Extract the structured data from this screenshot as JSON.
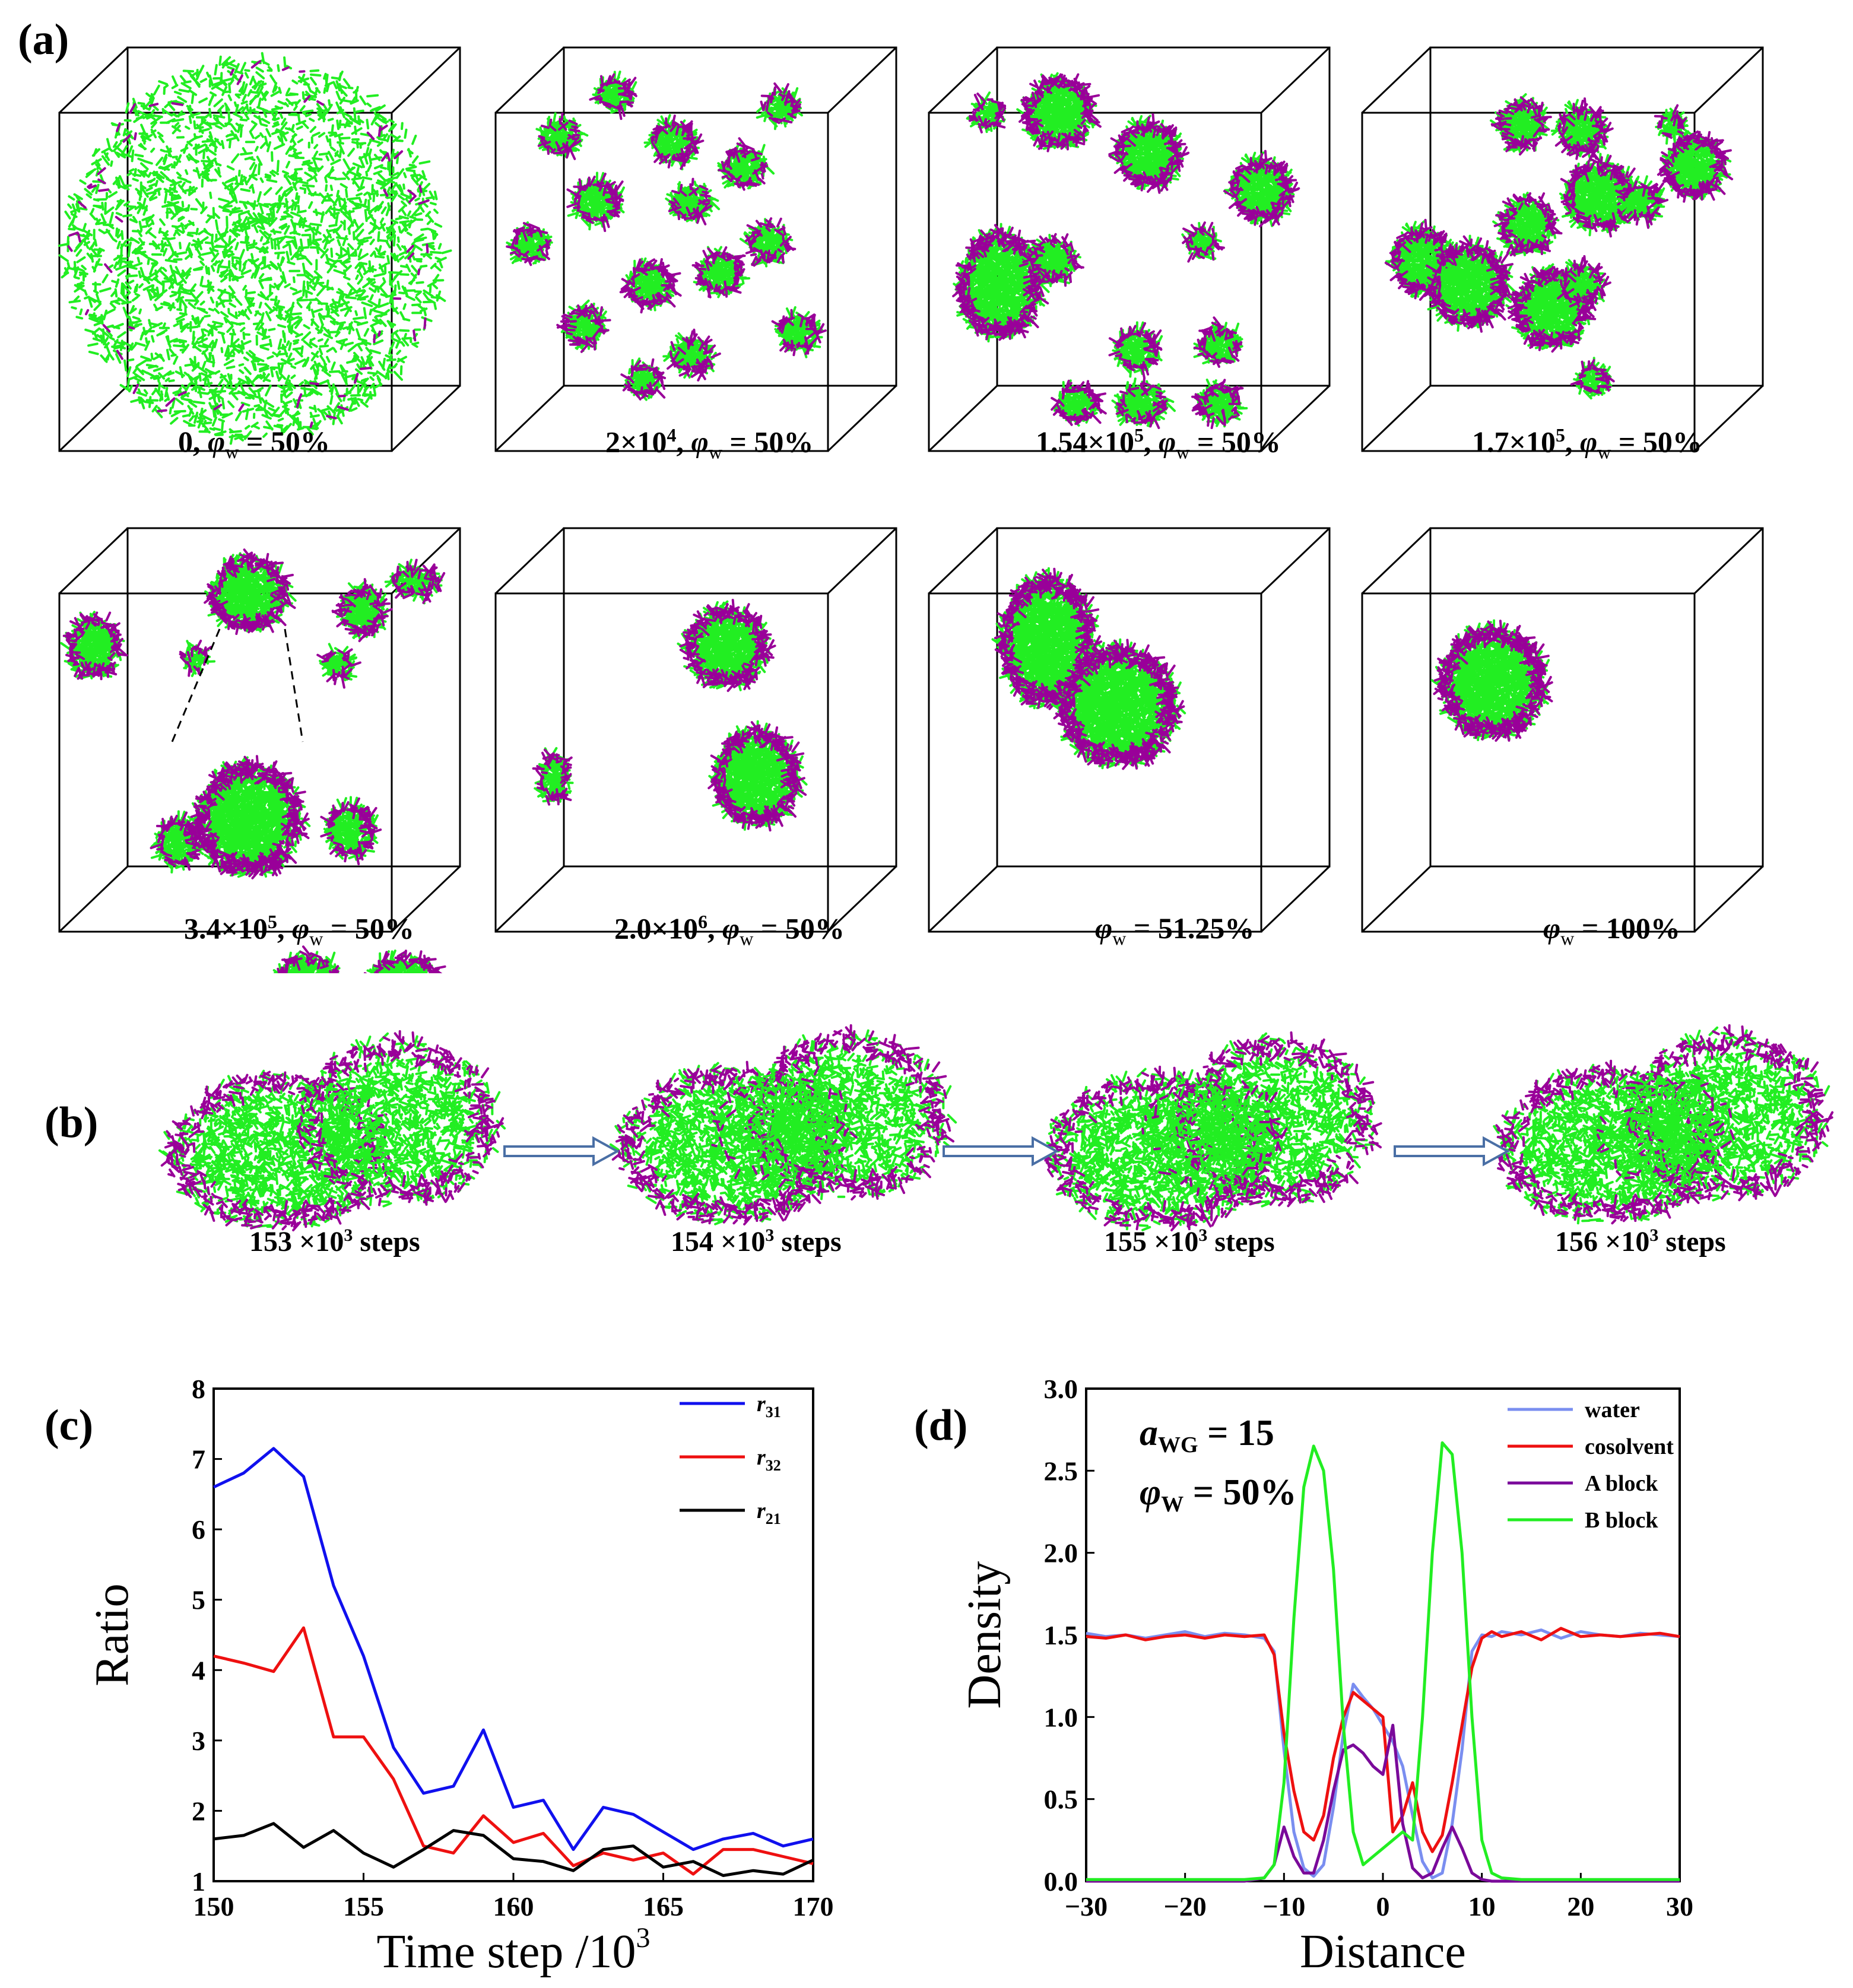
{
  "panel_a": {
    "tag": "(a)",
    "snapshots": [
      {
        "time": "0, ",
        "phi": "φ",
        "sub": "w",
        "value": " = 50%",
        "sup": ""
      },
      {
        "time": "2×10",
        "sup": "4",
        "tail": ", ",
        "phi": "φ",
        "sub": "w",
        "value": " = 50%"
      },
      {
        "time": "1.54×10",
        "sup": "5",
        "tail": ", ",
        "phi": "φ",
        "sub": "w",
        "value": " = 50%"
      },
      {
        "time": "1.7×10",
        "sup": "5",
        "tail": ", ",
        "phi": "φ",
        "sub": "w",
        "value": " = 50%"
      },
      {
        "time": "3.4×10",
        "sup": "5",
        "tail": ", ",
        "phi": "φ",
        "sub": "w",
        "value": " = 50%"
      },
      {
        "time": "2.0×10",
        "sup": "6",
        "tail": ", ",
        "phi": "φ",
        "sub": "w",
        "value": " = 50%"
      },
      {
        "time": "",
        "sup": "",
        "tail": "",
        "phi": "φ",
        "sub": "w",
        "value": " = 51.25%"
      },
      {
        "time": "",
        "sup": "",
        "tail": "",
        "phi": "φ",
        "sub": "w",
        "value": " = 100%"
      }
    ]
  },
  "panel_b": {
    "tag": "(b)",
    "frames": [
      {
        "num": "153 ×10",
        "sup": "3",
        "unit": " steps"
      },
      {
        "num": "154 ×10",
        "sup": "3",
        "unit": " steps"
      },
      {
        "num": "155 ×10",
        "sup": "3",
        "unit": " steps"
      },
      {
        "num": "156 ×10",
        "sup": "3",
        "unit": " steps"
      }
    ]
  },
  "colors": {
    "green": "#22ee22",
    "purple": "#990099",
    "blue": "#1010ee",
    "red": "#ee1010",
    "black": "#000000",
    "water": "#7a8ef0",
    "arrow": "#4a6fa5"
  },
  "chart_data": [
    {
      "tag": "(c)",
      "type": "line",
      "ylabel": "Ratio",
      "xlabel": "Time step /10",
      "xlabel_sup": "3",
      "xlim": [
        150,
        170
      ],
      "ylim": [
        1,
        8
      ],
      "xticks": [
        "150",
        "155",
        "160",
        "165",
        "170"
      ],
      "yticks": [
        "1",
        "2",
        "3",
        "4",
        "5",
        "6",
        "7",
        "8"
      ],
      "legend_position": "top-right",
      "x": [
        150,
        151,
        152,
        153,
        154,
        155,
        156,
        157,
        158,
        159,
        160,
        161,
        162,
        163,
        164,
        165,
        166,
        167,
        168,
        169,
        170
      ],
      "series": [
        {
          "name": "r",
          "sub": "31",
          "color": "#1010ee",
          "values": [
            6.6,
            6.8,
            7.15,
            6.75,
            5.2,
            4.2,
            2.9,
            2.25,
            2.35,
            3.15,
            2.05,
            2.15,
            1.45,
            2.05,
            1.95,
            1.7,
            1.45,
            1.6,
            1.68,
            1.5,
            1.6
          ]
        },
        {
          "name": "r",
          "sub": "32",
          "color": "#ee1010",
          "values": [
            4.2,
            4.1,
            3.98,
            4.6,
            3.05,
            3.05,
            2.45,
            1.5,
            1.4,
            1.93,
            1.55,
            1.68,
            1.22,
            1.4,
            1.3,
            1.4,
            1.1,
            1.45,
            1.45,
            1.35,
            1.25
          ]
        },
        {
          "name": "r",
          "sub": "21",
          "color": "#000000",
          "values": [
            1.6,
            1.65,
            1.82,
            1.48,
            1.72,
            1.4,
            1.2,
            1.45,
            1.72,
            1.65,
            1.32,
            1.28,
            1.15,
            1.45,
            1.5,
            1.2,
            1.28,
            1.08,
            1.15,
            1.1,
            1.3
          ]
        }
      ]
    },
    {
      "tag": "(d)",
      "type": "line",
      "ylabel": "Density",
      "xlabel": "Distance",
      "xlim": [
        -30,
        30
      ],
      "ylim": [
        0,
        3
      ],
      "xticks": [
        "−30",
        "−20",
        "−10",
        "0",
        "10",
        "20",
        "30"
      ],
      "yticks": [
        "0.0",
        "0.5",
        "1.0",
        "1.5",
        "2.0",
        "2.5",
        "3.0"
      ],
      "legend_position": "top-right",
      "annotation": {
        "a": "a",
        "a_sub": "WG",
        "a_val": " = 15",
        "phi": "φ",
        "phi_sub": "W",
        "phi_val": " = 50%"
      },
      "x": [
        -30,
        -28,
        -26,
        -24,
        -22,
        -20,
        -18,
        -16,
        -14,
        -12,
        -11,
        -10,
        -9,
        -8,
        -7,
        -6,
        -5,
        -4,
        -3,
        -2,
        -1,
        0,
        1,
        2,
        3,
        4,
        5,
        6,
        7,
        8,
        9,
        10,
        11,
        12,
        14,
        16,
        18,
        20,
        22,
        24,
        26,
        28,
        30
      ],
      "series": [
        {
          "name": "water",
          "color": "#7a8ef0",
          "values": [
            1.51,
            1.49,
            1.5,
            1.48,
            1.5,
            1.52,
            1.49,
            1.51,
            1.5,
            1.48,
            1.4,
            0.8,
            0.3,
            0.08,
            0.03,
            0.1,
            0.45,
            0.9,
            1.2,
            1.12,
            1.05,
            0.95,
            0.85,
            0.7,
            0.4,
            0.12,
            0.02,
            0.05,
            0.35,
            0.8,
            1.4,
            1.5,
            1.49,
            1.52,
            1.5,
            1.53,
            1.48,
            1.52,
            1.5,
            1.49,
            1.51,
            1.5,
            1.49
          ]
        },
        {
          "name": "cosolvent",
          "color": "#ee1010",
          "values": [
            1.49,
            1.48,
            1.5,
            1.47,
            1.49,
            1.5,
            1.48,
            1.5,
            1.49,
            1.5,
            1.38,
            0.9,
            0.55,
            0.3,
            0.25,
            0.4,
            0.75,
            1.0,
            1.15,
            1.1,
            1.05,
            1.0,
            0.3,
            0.4,
            0.6,
            0.3,
            0.18,
            0.28,
            0.6,
            0.95,
            1.3,
            1.48,
            1.52,
            1.49,
            1.52,
            1.47,
            1.54,
            1.49,
            1.5,
            1.49,
            1.5,
            1.51,
            1.49
          ]
        },
        {
          "name": "A block",
          "color": "#7a0a9a",
          "values": [
            0,
            0,
            0,
            0,
            0,
            0,
            0,
            0,
            0,
            0.02,
            0.1,
            0.33,
            0.15,
            0.05,
            0.05,
            0.25,
            0.55,
            0.8,
            0.83,
            0.78,
            0.7,
            0.65,
            0.95,
            0.35,
            0.08,
            0.02,
            0.05,
            0.2,
            0.33,
            0.2,
            0.05,
            0.01,
            0,
            0,
            0,
            0,
            0,
            0,
            0,
            0,
            0,
            0,
            0
          ]
        },
        {
          "name": "B block",
          "color": "#22ee22",
          "values": [
            0.01,
            0.01,
            0.01,
            0.01,
            0.01,
            0.01,
            0.01,
            0.01,
            0.01,
            0.02,
            0.1,
            0.6,
            1.6,
            2.4,
            2.65,
            2.5,
            1.9,
            0.95,
            0.3,
            0.1,
            0.15,
            0.2,
            0.25,
            0.3,
            0.25,
            1.0,
            2.0,
            2.67,
            2.6,
            2.0,
            1.0,
            0.25,
            0.05,
            0.02,
            0.01,
            0.01,
            0.01,
            0.01,
            0.01,
            0.01,
            0.01,
            0.01,
            0.01
          ]
        }
      ]
    }
  ]
}
